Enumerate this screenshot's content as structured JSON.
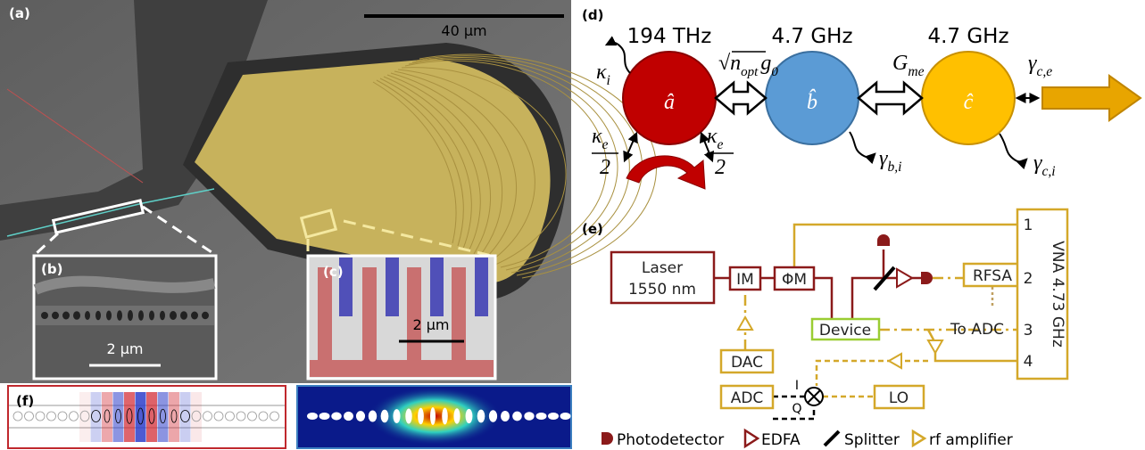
{
  "panel_a": {
    "label": "(a)",
    "scale_bar": "40 μm"
  },
  "panel_b": {
    "label": "(b)",
    "scale_bar": "2 μm"
  },
  "panel_c": {
    "label": "(c)",
    "scale_bar": "2 μm"
  },
  "panel_d": {
    "label": "(d)",
    "modes": [
      {
        "frequency": "194 THz",
        "operator": "â"
      },
      {
        "frequency": "4.7 GHz",
        "operator": "b̂"
      },
      {
        "frequency": "4.7 GHz",
        "operator": "ĉ"
      }
    ],
    "rates": {
      "kappa_i": {
        "symbol": "κ",
        "sub": "i"
      },
      "optomech": {
        "root": "√",
        "symbol": "n",
        "sub": "opt",
        "factor": "g",
        "factor_sub": "0"
      },
      "piezo": {
        "symbol": "G",
        "sub": "me"
      },
      "gamma_ce": {
        "symbol": "γ",
        "sub": "c,e"
      },
      "kappa_e_left": {
        "symbol": "κ",
        "sub": "e",
        "denominator": "2"
      },
      "kappa_e_right": {
        "symbol": "κ",
        "sub": "e",
        "denominator": "2"
      },
      "gamma_bi": {
        "symbol": "γ",
        "sub": "b,i"
      },
      "gamma_ci": {
        "symbol": "γ",
        "sub": "c,i"
      }
    }
  },
  "panel_e": {
    "label": "(e)",
    "laser": [
      "Laser",
      "1550 nm"
    ],
    "im": "IM",
    "pm": "ΦM",
    "device": "Device",
    "rfsa": "RFSA",
    "to_adc": "To ADC",
    "vna": "VNA 4.73 GHz",
    "ports": [
      "1",
      "2",
      "3",
      "4"
    ],
    "dac": "DAC",
    "adc": "ADC",
    "lo": "LO",
    "iq": [
      "I",
      "Q"
    ],
    "legend": [
      "Photodetector",
      "EDFA",
      "Splitter",
      "rf amplifier"
    ]
  },
  "panel_f": {
    "label": "(f)"
  }
}
